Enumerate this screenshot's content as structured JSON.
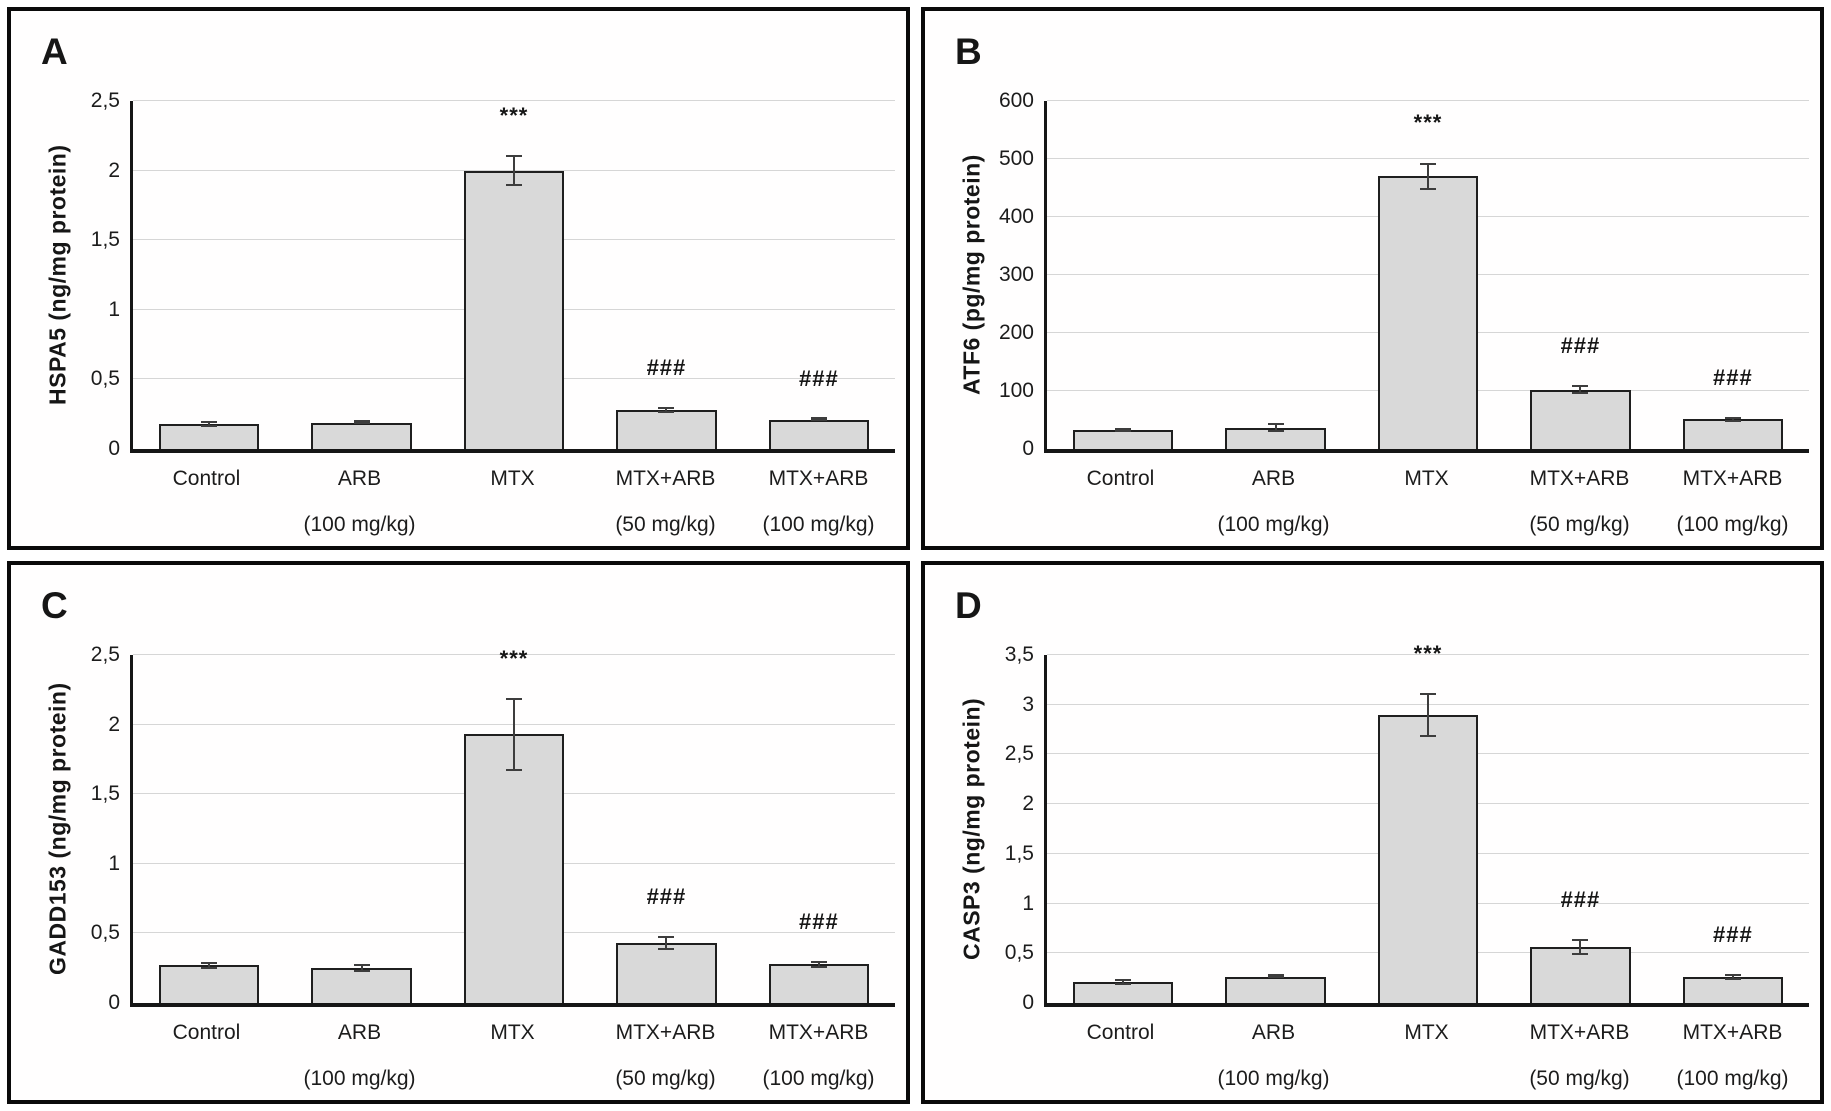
{
  "figure": {
    "description_visible_text_only": "Four-panel bar figure labeled A, B, C, D",
    "colors": {
      "bar_fill": "#d9d9d9",
      "bar_border": "#1f1f1f",
      "gridline": "#d6d6d6",
      "axis": "#161616",
      "error_bar": "#3d3d3d",
      "panel_border": "#0a0a0a",
      "background": "#ffffff"
    }
  },
  "chart_data": [
    {
      "panel": "A",
      "type": "bar",
      "ylabel": "HSPA5 (ng/mg protein)",
      "ylim": [
        0,
        2.5
      ],
      "ytick_values": [
        0,
        0.5,
        1,
        1.5,
        2,
        2.5
      ],
      "ytick_labels": [
        "0",
        "0,5",
        "1",
        "1,5",
        "2",
        "2,5"
      ],
      "grid": true,
      "legend": false,
      "categories": [
        "Control",
        "ARB (100 mg/kg)",
        "MTX",
        "MTX+ARB (50 mg/kg)",
        "MTX+ARB (100 mg/kg)"
      ],
      "category_line1": [
        "Control",
        "ARB",
        "MTX",
        "MTX+ARB",
        "MTX+ARB"
      ],
      "category_line2": [
        "",
        "(100 mg/kg)",
        "",
        "(50 mg/kg)",
        "(100 mg/kg)"
      ],
      "values": [
        0.18,
        0.19,
        2.0,
        0.28,
        0.21
      ],
      "errors": [
        0.02,
        0.01,
        0.11,
        0.02,
        0.01
      ],
      "annotations": [
        "",
        "",
        "***",
        "###",
        "###"
      ]
    },
    {
      "panel": "B",
      "type": "bar",
      "ylabel": "ATF6 (pg/mg protein)",
      "ylim": [
        0,
        600
      ],
      "ytick_values": [
        0,
        100,
        200,
        300,
        400,
        500,
        600
      ],
      "ytick_labels": [
        "0",
        "100",
        "200",
        "300",
        "400",
        "500",
        "600"
      ],
      "grid": true,
      "legend": false,
      "categories": [
        "Control",
        "ARB (100 mg/kg)",
        "MTX",
        "MTX+ARB (50 mg/kg)",
        "MTX+ARB (100 mg/kg)"
      ],
      "category_line1": [
        "Control",
        "ARB",
        "MTX",
        "MTX+ARB",
        "MTX+ARB"
      ],
      "category_line2": [
        "",
        "(100 mg/kg)",
        "",
        "(50 mg/kg)",
        "(100 mg/kg)"
      ],
      "values": [
        32,
        37,
        470,
        102,
        51
      ],
      "errors": [
        3,
        8,
        24,
        8,
        5
      ],
      "annotations": [
        "",
        "",
        "***",
        "###",
        "###"
      ]
    },
    {
      "panel": "C",
      "type": "bar",
      "ylabel": "GADD153 (ng/mg protein)",
      "ylim": [
        0,
        2.5
      ],
      "ytick_values": [
        0,
        0.5,
        1,
        1.5,
        2,
        2.5
      ],
      "ytick_labels": [
        "0",
        "0,5",
        "1",
        "1,5",
        "2",
        "2,5"
      ],
      "grid": true,
      "legend": false,
      "categories": [
        "Control",
        "ARB (100 mg/kg)",
        "MTX",
        "MTX+ARB (50 mg/kg)",
        "MTX+ARB (100 mg/kg)"
      ],
      "category_line1": [
        "Control",
        "ARB",
        "MTX",
        "MTX+ARB",
        "MTX+ARB"
      ],
      "category_line2": [
        "",
        "(100 mg/kg)",
        "",
        "(50 mg/kg)",
        "(100 mg/kg)"
      ],
      "values": [
        0.27,
        0.25,
        1.93,
        0.43,
        0.28
      ],
      "errors": [
        0.025,
        0.03,
        0.26,
        0.05,
        0.025
      ],
      "annotations": [
        "",
        "",
        "***",
        "###",
        "###"
      ]
    },
    {
      "panel": "D",
      "type": "bar",
      "ylabel": "CASP3 (ng/mg protein)",
      "ylim": [
        0,
        3.5
      ],
      "ytick_values": [
        0,
        0.5,
        1,
        1.5,
        2,
        2.5,
        3,
        3.5
      ],
      "ytick_labels": [
        "0",
        "0,5",
        "1",
        "1,5",
        "2",
        "2,5",
        "3",
        "3,5"
      ],
      "grid": true,
      "legend": false,
      "categories": [
        "Control",
        "ARB (100 mg/kg)",
        "MTX",
        "MTX+ARB (50 mg/kg)",
        "MTX+ARB (100 mg/kg)"
      ],
      "category_line1": [
        "Control",
        "ARB",
        "MTX",
        "MTX+ARB",
        "MTX+ARB"
      ],
      "category_line2": [
        "",
        "(100 mg/kg)",
        "",
        "(50 mg/kg)",
        "(100 mg/kg)"
      ],
      "values": [
        0.21,
        0.26,
        2.9,
        0.56,
        0.26
      ],
      "errors": [
        0.03,
        0.012,
        0.22,
        0.08,
        0.03
      ],
      "annotations": [
        "",
        "",
        "***",
        "###",
        "###"
      ]
    }
  ]
}
